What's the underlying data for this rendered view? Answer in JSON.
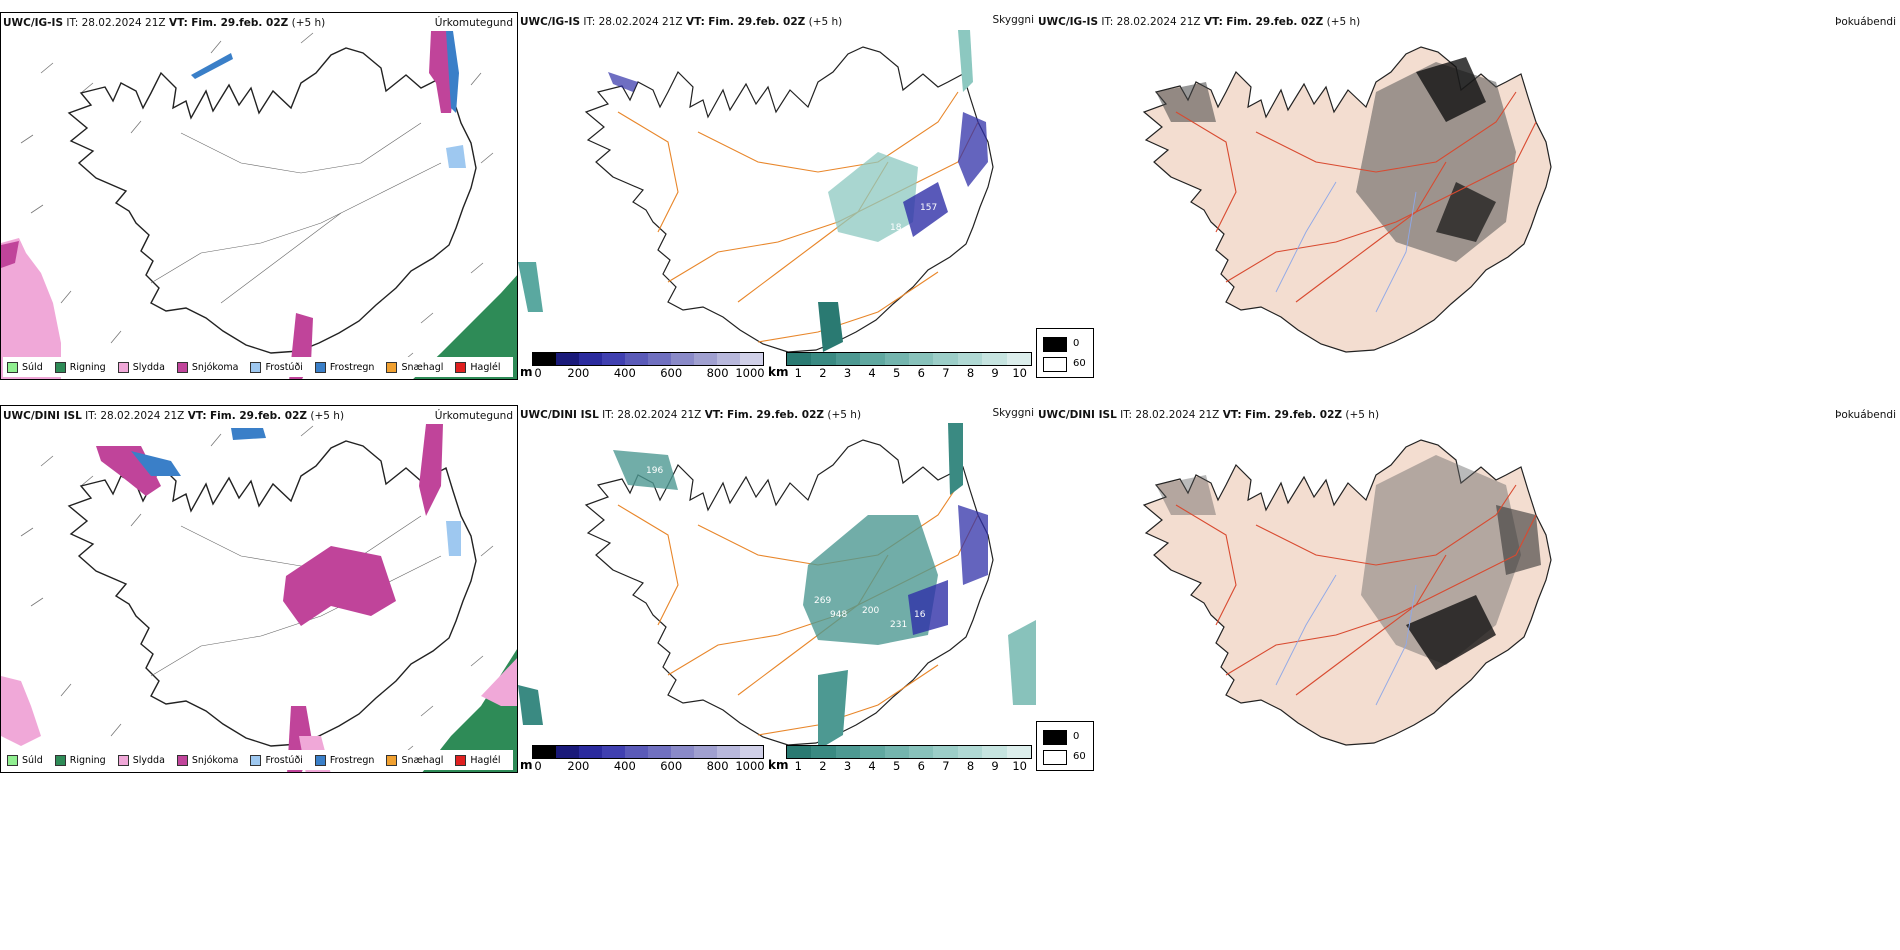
{
  "rows": [
    {
      "model": "UWC/IG-IS",
      "it": "IT: 28.02.2024 21Z",
      "vt_label": "VT:",
      "vt_value": "Fim. 29.feb. 02Z",
      "lead": "(+5 h)",
      "precip_title": "Úrkomutegund",
      "vis_title": "Skyggni",
      "fog_title": "Þokuábendi"
    },
    {
      "model": "UWC/DINI ISL",
      "it": "IT: 28.02.2024 21Z",
      "vt_label": "VT:",
      "vt_value": "Fim. 29.feb. 02Z",
      "lead": "(+5 h)",
      "precip_title": "Úrkomutegund",
      "vis_title": "Skyggni",
      "fog_title": "Þokuábendi"
    }
  ],
  "precip_legend": [
    {
      "label": "Súld",
      "color": "#90ee90"
    },
    {
      "label": "Rigning",
      "color": "#2e8b57"
    },
    {
      "label": "Slydda",
      "color": "#f0a8d8"
    },
    {
      "label": "Snjókoma",
      "color": "#c0449a"
    },
    {
      "label": "Frostúði",
      "color": "#9ec8f0"
    },
    {
      "label": "Frostregn",
      "color": "#3a7fc8"
    },
    {
      "label": "Snæhagl",
      "color": "#f0a030"
    },
    {
      "label": "Haglél",
      "color": "#e02020"
    }
  ],
  "vis_scale_m": {
    "unit": "m",
    "ticks": [
      "0",
      "200",
      "400",
      "600",
      "800",
      "1000"
    ],
    "colors": [
      "#000000",
      "#1a1a7a",
      "#2b2b9e",
      "#4040b0",
      "#5a5ab8",
      "#7070c0",
      "#8a8ac8",
      "#a0a0d0",
      "#b8b8dc",
      "#d0d0e8"
    ]
  },
  "vis_scale_km": {
    "unit": "km",
    "ticks": [
      "1",
      "2",
      "3",
      "4",
      "5",
      "6",
      "7",
      "8",
      "9",
      "10"
    ],
    "colors": [
      "#2a7a72",
      "#3a8a82",
      "#4d9992",
      "#60a8a0",
      "#74b5ae",
      "#88c2bb",
      "#9ccec8",
      "#b0d9d4",
      "#c6e4e0",
      "#dceeec"
    ]
  },
  "fog_legend": {
    "high": "0",
    "low": "60",
    "high_color": "#000000",
    "low_color": "#ffffff"
  },
  "vis_labels_row1": [
    "157",
    "18"
  ],
  "vis_labels_row2": [
    "196",
    "269",
    "948",
    "200",
    "231",
    "16"
  ],
  "colors": {
    "land_fog": "#f3ddd0",
    "roads_orange": "#e8862a",
    "roads_red": "#d84a30",
    "rivers": "#8fa8e8",
    "coast": "#222222",
    "snow": "#c0449a",
    "sleet": "#f0a8d8",
    "rain": "#2e8b57",
    "frzrain": "#3a7fc8",
    "vis_teal": "#8cc8c0",
    "vis_blue": "#3030a8"
  }
}
